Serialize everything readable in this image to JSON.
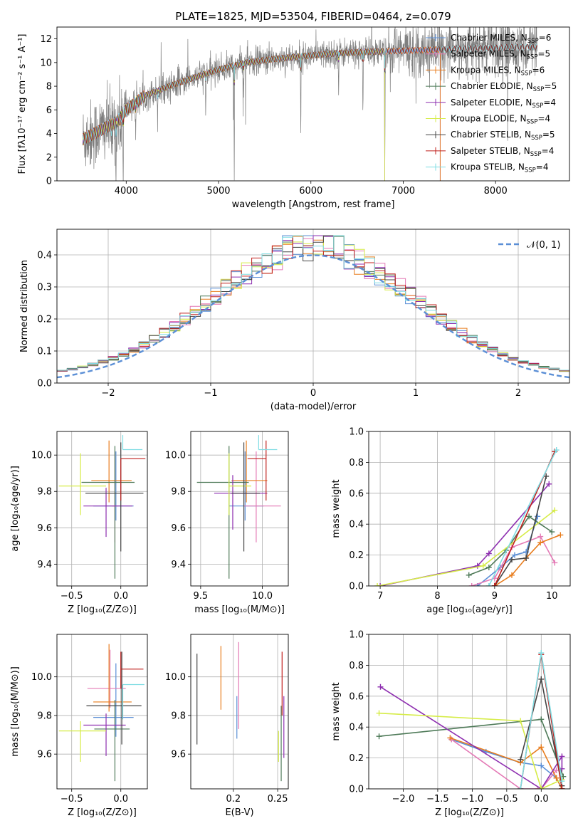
{
  "figure_title": "PLATE=1825, MJD=53504, FIBERID=0464, z=0.079",
  "colors": {
    "Chabrier MILES": "#5b8fd6",
    "Salpeter MILES": "#e47ab6",
    "Kroupa MILES": "#e87d1e",
    "Chabrier ELODIE": "#4e7a58",
    "Salpeter ELODIE": "#8e2fb0",
    "Kroupa ELODIE": "#d6ec48",
    "Chabrier STELIB": "#444444",
    "Salpeter STELIB": "#c0201e",
    "Kroupa STELIB": "#7fdde3",
    "data": "#7f7f7f",
    "normal_curve": "#5b8fd6"
  },
  "chart_data": [
    {
      "id": "spectrum",
      "type": "line",
      "title": "PLATE=1825, MJD=53504, FIBERID=0464, z=0.079",
      "xlabel": "wavelength [Angstrom, rest frame]",
      "ylabel": "Flux [fλ10⁻¹⁷ erg cm⁻² s⁻¹ A⁻¹]",
      "xlim": [
        3250,
        8800
      ],
      "ylim": [
        0,
        13
      ],
      "xticks": [
        4000,
        5000,
        6000,
        7000,
        8000
      ],
      "yticks": [
        0,
        2,
        4,
        6,
        8,
        10,
        12
      ],
      "legend_position": "top-right",
      "legend": [
        "Chabrier MILES, N_SSP=6",
        "Salpeter MILES, N_SSP=5",
        "Kroupa MILES, N_SSP=6",
        "Chabrier ELODIE, N_SSP=5",
        "Salpeter ELODIE, N_SSP=4",
        "Kroupa ELODIE, N_SSP=4",
        "Chabrier STELIB, N_SSP=5",
        "Salpeter STELIB, N_SSP=4",
        "Kroupa STELIB, N_SSP=4"
      ],
      "data_range": [
        3530,
        8450
      ],
      "continuum": [
        [
          3530,
          3.5
        ],
        [
          3700,
          4.2
        ],
        [
          3900,
          5.0
        ],
        [
          4000,
          6.0
        ],
        [
          4200,
          7.2
        ],
        [
          4500,
          8.1
        ],
        [
          4800,
          8.9
        ],
        [
          5000,
          9.4
        ],
        [
          5300,
          10.0
        ],
        [
          5600,
          10.3
        ],
        [
          6000,
          10.6
        ],
        [
          6300,
          10.8
        ],
        [
          6600,
          10.9
        ],
        [
          7000,
          11.0
        ],
        [
          7400,
          11.1
        ],
        [
          7800,
          11.2
        ],
        [
          8200,
          11.3
        ],
        [
          8450,
          11.3
        ]
      ],
      "absorption_lines": [
        [
          3840,
          1.5
        ],
        [
          3890,
          0
        ],
        [
          3933,
          3.5
        ],
        [
          3968,
          0
        ],
        [
          4102,
          3.0
        ],
        [
          4340,
          4.5
        ],
        [
          4861,
          5.5
        ],
        [
          5170,
          0.3
        ],
        [
          5270,
          7.5
        ],
        [
          5890,
          3.8
        ],
        [
          6300,
          7.2
        ],
        [
          6563,
          5.0
        ],
        [
          6800,
          0
        ]
      ],
      "model_ranges": {
        "MILES": [
          3530,
          7400
        ],
        "ELODIE": [
          3530,
          6800
        ],
        "STELIB": [
          3530,
          8450
        ]
      }
    },
    {
      "id": "residuals",
      "type": "histogram",
      "xlabel": "(data-model)/error",
      "ylabel": "Normed distribution",
      "xlim": [
        -2.5,
        2.5
      ],
      "ylim": [
        0,
        0.48
      ],
      "xticks": [
        -2,
        -1,
        0,
        1,
        2
      ],
      "yticks": [
        0.0,
        0.1,
        0.2,
        0.3,
        0.4
      ],
      "legend": [
        "𝒩(0, 1)"
      ],
      "legend_position": "top-right",
      "bin_width": 0.1,
      "grid": true
    },
    {
      "id": "age_vs_Z",
      "type": "errorbar",
      "xlabel": "Z [log₁₀(Z/Z⊙)]",
      "ylabel": "age  [log₁₀(age/yr)]",
      "xlim": [
        -0.65,
        0.27
      ],
      "ylim": [
        9.28,
        10.13
      ],
      "xticks": [
        -0.5,
        0.0
      ],
      "yticks": [
        9.4,
        9.6,
        9.8,
        10.0
      ],
      "points": [
        {
          "m": "Chabrier MILES",
          "x": -0.05,
          "y": 9.72,
          "xerr": [
            0.23,
            0.18
          ],
          "yerr": [
            0.08,
            0.3
          ]
        },
        {
          "m": "Salpeter MILES",
          "x": -0.06,
          "y": 9.72,
          "xerr": [
            0.03,
            0.03
          ],
          "yerr": [
            0.2,
            0.3
          ]
        },
        {
          "m": "Kroupa MILES",
          "x": -0.12,
          "y": 9.86,
          "xerr": [
            0.18,
            0.23
          ],
          "yerr": [
            0.12,
            0.22
          ]
        },
        {
          "m": "Chabrier ELODIE",
          "x": -0.06,
          "y": 9.85,
          "xerr": [
            0.34,
            0.2
          ],
          "yerr": [
            0.53,
            0.2
          ]
        },
        {
          "m": "Salpeter ELODIE",
          "x": -0.15,
          "y": 9.72,
          "xerr": [
            0.23,
            0.27
          ],
          "yerr": [
            0.17,
            0.1
          ]
        },
        {
          "m": "Kroupa ELODIE",
          "x": -0.41,
          "y": 9.83,
          "xerr": [
            0.22,
            0.26
          ],
          "yerr": [
            0.16,
            0.18
          ]
        },
        {
          "m": "Chabrier STELIB",
          "x": 0.0,
          "y": 9.79,
          "xerr": [
            0.36,
            0.23
          ],
          "yerr": [
            0.32,
            0.28
          ]
        },
        {
          "m": "Salpeter STELIB",
          "x": 0.0,
          "y": 9.98,
          "xerr": [
            0.0,
            0.25
          ],
          "yerr": [
            0.23,
            0.0
          ]
        },
        {
          "m": "Kroupa STELIB",
          "x": 0.02,
          "y": 10.03,
          "xerr": [
            0.0,
            0.2
          ],
          "yerr": [
            0.0,
            0.08
          ]
        }
      ]
    },
    {
      "id": "age_vs_mass",
      "type": "errorbar",
      "xlabel": "mass [log₁₀(M/M⊙)]",
      "ylabel": "",
      "xlim": [
        9.42,
        10.21
      ],
      "ylim": [
        9.28,
        10.13
      ],
      "xticks": [
        9.5,
        10.0
      ],
      "yticks": [
        9.4,
        9.6,
        9.8,
        10.0
      ],
      "points": [
        {
          "m": "Chabrier MILES",
          "x": 9.86,
          "y": 9.72,
          "xerr": [
            0.13,
            0.15
          ],
          "yerr": [
            0.08,
            0.3
          ]
        },
        {
          "m": "Salpeter MILES",
          "x": 9.95,
          "y": 9.72,
          "xerr": [
            0.1,
            0.2
          ],
          "yerr": [
            0.2,
            0.3
          ]
        },
        {
          "m": "Kroupa MILES",
          "x": 9.87,
          "y": 9.86,
          "xerr": [
            0.12,
            0.17
          ],
          "yerr": [
            0.12,
            0.22
          ]
        },
        {
          "m": "Chabrier ELODIE",
          "x": 9.73,
          "y": 9.85,
          "xerr": [
            0.26,
            0.16
          ],
          "yerr": [
            0.53,
            0.2
          ]
        },
        {
          "m": "Salpeter ELODIE",
          "x": 9.76,
          "y": 9.79,
          "xerr": [
            0.15,
            0.28
          ],
          "yerr": [
            0.2,
            0.1
          ]
        },
        {
          "m": "Kroupa ELODIE",
          "x": 9.73,
          "y": 9.83,
          "xerr": [
            0.0,
            0.18
          ],
          "yerr": [
            0.16,
            0.18
          ]
        },
        {
          "m": "Chabrier STELIB",
          "x": 9.85,
          "y": 9.79,
          "xerr": [
            0.1,
            0.13
          ],
          "yerr": [
            0.32,
            0.28
          ]
        },
        {
          "m": "Salpeter STELIB",
          "x": 10.03,
          "y": 9.98,
          "xerr": [
            0.15,
            0.0
          ],
          "yerr": [
            0.23,
            0.1
          ]
        },
        {
          "m": "Kroupa STELIB",
          "x": 9.97,
          "y": 10.03,
          "xerr": [
            0.0,
            0.15
          ],
          "yerr": [
            0.0,
            0.08
          ]
        }
      ]
    },
    {
      "id": "weight_vs_age",
      "type": "line",
      "xlabel": "age  [log₁₀(age/yr)]",
      "ylabel": "mass weight",
      "xlim": [
        6.8,
        10.32
      ],
      "ylim": [
        0,
        1
      ],
      "xticks": [
        7,
        8,
        9,
        10
      ],
      "yticks": [
        0.0,
        0.2,
        0.4,
        0.6,
        0.8,
        1.0
      ],
      "grid": true,
      "series": [
        {
          "m": "Chabrier MILES",
          "x": [
            8.7,
            9.1,
            9.35,
            9.55,
            9.75
          ],
          "y": [
            0.0,
            0.12,
            0.2,
            0.22,
            0.45
          ]
        },
        {
          "m": "Salpeter MILES",
          "x": [
            8.6,
            9.0,
            9.3,
            9.8,
            10.05
          ],
          "y": [
            0.0,
            0.05,
            0.25,
            0.32,
            0.15
          ]
        },
        {
          "m": "Kroupa MILES",
          "x": [
            9.0,
            9.3,
            9.55,
            9.8,
            10.15
          ],
          "y": [
            0.0,
            0.07,
            0.18,
            0.28,
            0.33
          ]
        },
        {
          "m": "Chabrier ELODIE",
          "x": [
            8.55,
            8.9,
            9.2,
            9.6,
            10.0
          ],
          "y": [
            0.07,
            0.12,
            0.23,
            0.45,
            0.35
          ]
        },
        {
          "m": "Salpeter ELODIE",
          "x": [
            7.0,
            8.7,
            8.9,
            9.95
          ],
          "y": [
            0.0,
            0.13,
            0.21,
            0.66
          ]
        },
        {
          "m": "Kroupa ELODIE",
          "x": [
            6.95,
            8.8,
            10.05
          ],
          "y": [
            0.0,
            0.13,
            0.49
          ]
        },
        {
          "m": "Chabrier STELIB",
          "x": [
            9.0,
            9.3,
            9.55,
            9.9
          ],
          "y": [
            0.0,
            0.17,
            0.18,
            0.71
          ]
        },
        {
          "m": "Salpeter STELIB",
          "x": [
            9.0,
            10.05
          ],
          "y": [
            0.0,
            0.87
          ]
        },
        {
          "m": "Kroupa STELIB",
          "x": [
            8.9,
            10.08
          ],
          "y": [
            0.0,
            0.88
          ]
        }
      ]
    },
    {
      "id": "mass_vs_Z",
      "type": "errorbar",
      "xlabel": "Z [log₁₀(Z/Z⊙)]",
      "ylabel": "mass [log₁₀(M/M⊙)]",
      "xlim": [
        -0.65,
        0.27
      ],
      "ylim": [
        9.42,
        10.22
      ],
      "xticks": [
        -0.5,
        0.0
      ],
      "yticks": [
        9.6,
        9.8,
        10.0
      ],
      "points": [
        {
          "m": "Chabrier MILES",
          "x": -0.05,
          "y": 9.79,
          "xerr": [
            0.23,
            0.18
          ],
          "yerr": [
            0.1,
            0.28
          ]
        },
        {
          "m": "Salpeter MILES",
          "x": -0.11,
          "y": 9.94,
          "xerr": [
            0.23,
            0.16
          ],
          "yerr": [
            0.1,
            0.2
          ]
        },
        {
          "m": "Kroupa MILES",
          "x": -0.12,
          "y": 9.87,
          "xerr": [
            0.16,
            0.23
          ],
          "yerr": [
            0.05,
            0.3
          ]
        },
        {
          "m": "Chabrier ELODIE",
          "x": -0.06,
          "y": 9.73,
          "xerr": [
            0.21,
            0.15
          ],
          "yerr": [
            0.27,
            0.15
          ]
        },
        {
          "m": "Salpeter ELODIE",
          "x": -0.15,
          "y": 9.75,
          "xerr": [
            0.23,
            0.2
          ],
          "yerr": [
            0.16,
            0.06
          ]
        },
        {
          "m": "Kroupa ELODIE",
          "x": -0.41,
          "y": 9.72,
          "xerr": [
            0.22,
            0.26
          ],
          "yerr": [
            0.16,
            0.05
          ]
        },
        {
          "m": "Chabrier STELIB",
          "x": 0.01,
          "y": 9.85,
          "xerr": [
            0.36,
            0.2
          ],
          "yerr": [
            0.2,
            0.28
          ]
        },
        {
          "m": "Salpeter STELIB",
          "x": 0.0,
          "y": 10.04,
          "xerr": [
            0.0,
            0.23
          ],
          "yerr": [
            0.1,
            0.09
          ]
        },
        {
          "m": "Kroupa STELIB",
          "x": 0.02,
          "y": 9.96,
          "xerr": [
            0.0,
            0.22
          ],
          "yerr": [
            0.18,
            0.0
          ]
        }
      ]
    },
    {
      "id": "mass_vs_ebv",
      "type": "errorbar",
      "xlabel": "E(B-V)",
      "ylabel": "",
      "xlim": [
        0.152,
        0.262
      ],
      "ylim": [
        9.42,
        10.22
      ],
      "xticks": [
        0.2,
        0.25
      ],
      "yticks": [
        9.6,
        9.8,
        10.0
      ],
      "points": [
        {
          "m": "Chabrier STELIB",
          "x": 0.159,
          "y": 9.88,
          "xerr": [
            0,
            0
          ],
          "yerr": [
            0.23,
            0.24
          ]
        },
        {
          "m": "Kroupa MILES",
          "x": 0.186,
          "y": 9.99,
          "xerr": [
            0,
            0
          ],
          "yerr": [
            0.16,
            0.17
          ]
        },
        {
          "m": "Chabrier MILES",
          "x": 0.204,
          "y": 9.8,
          "xerr": [
            0,
            0
          ],
          "yerr": [
            0.12,
            0.1
          ]
        },
        {
          "m": "Salpeter MILES",
          "x": 0.206,
          "y": 9.98,
          "xerr": [
            0,
            0
          ],
          "yerr": [
            0.25,
            0.2
          ]
        },
        {
          "m": "Kroupa ELODIE",
          "x": 0.251,
          "y": 9.72,
          "xerr": [
            0,
            0
          ],
          "yerr": [
            0.16,
            0.0
          ]
        },
        {
          "m": "Chabrier ELODIE",
          "x": 0.254,
          "y": 9.71,
          "xerr": [
            0,
            0
          ],
          "yerr": [
            0.25,
            0.14
          ]
        },
        {
          "m": "Salpeter STELIB",
          "x": 0.255,
          "y": 9.95,
          "xerr": [
            0,
            0
          ],
          "yerr": [
            0.15,
            0.18
          ]
        },
        {
          "m": "Salpeter ELODIE",
          "x": 0.257,
          "y": 9.74,
          "xerr": [
            0,
            0
          ],
          "yerr": [
            0.16,
            0.16
          ]
        }
      ]
    },
    {
      "id": "weight_vs_Z",
      "type": "line",
      "xlabel": "Z [log₁₀(Z/Z⊙)]",
      "ylabel": "mass weight",
      "xlim": [
        -2.5,
        0.42
      ],
      "ylim": [
        0,
        1
      ],
      "xticks": [
        -2.0,
        -1.5,
        -1.0,
        -0.5,
        0.0
      ],
      "yticks": [
        0.0,
        0.2,
        0.4,
        0.6,
        0.8,
        1.0
      ],
      "grid": true,
      "series": [
        {
          "m": "Chabrier MILES",
          "x": [
            -1.3,
            -0.8,
            -0.3,
            0.0,
            0.22,
            0.3
          ],
          "y": [
            0.32,
            0.24,
            0.17,
            0.15,
            0.07,
            0.0
          ]
        },
        {
          "m": "Salpeter MILES",
          "x": [
            -1.3,
            -0.3,
            -0.05,
            0.0,
            0.22
          ],
          "y": [
            0.32,
            0.0,
            0.0,
            0.0,
            0.12
          ]
        },
        {
          "m": "Kroupa MILES",
          "x": [
            -1.32,
            -0.3,
            0.0,
            0.22,
            0.3
          ],
          "y": [
            0.33,
            0.17,
            0.27,
            0.07,
            0.0
          ]
        },
        {
          "m": "Chabrier ELODIE",
          "x": [
            -2.35,
            0.0,
            0.32
          ],
          "y": [
            0.34,
            0.45,
            0.08
          ]
        },
        {
          "m": "Salpeter ELODIE",
          "x": [
            -2.33,
            0.0,
            0.3,
            0.3
          ],
          "y": [
            0.66,
            0.0,
            0.21,
            0.13
          ]
        },
        {
          "m": "Kroupa ELODIE",
          "x": [
            -2.35,
            -0.3,
            0.0,
            0.3
          ],
          "y": [
            0.49,
            0.44,
            0.0,
            0.06
          ]
        },
        {
          "m": "Chabrier STELIB",
          "x": [
            -0.3,
            0.0,
            0.3
          ],
          "y": [
            0.19,
            0.71,
            0.02
          ]
        },
        {
          "m": "Salpeter STELIB",
          "x": [
            -0.3,
            0.0,
            0.3
          ],
          "y": [
            0.0,
            0.87,
            0.0
          ]
        },
        {
          "m": "Kroupa STELIB",
          "x": [
            -0.3,
            0.0,
            0.3
          ],
          "y": [
            0.0,
            0.88,
            0.05
          ]
        }
      ]
    }
  ]
}
